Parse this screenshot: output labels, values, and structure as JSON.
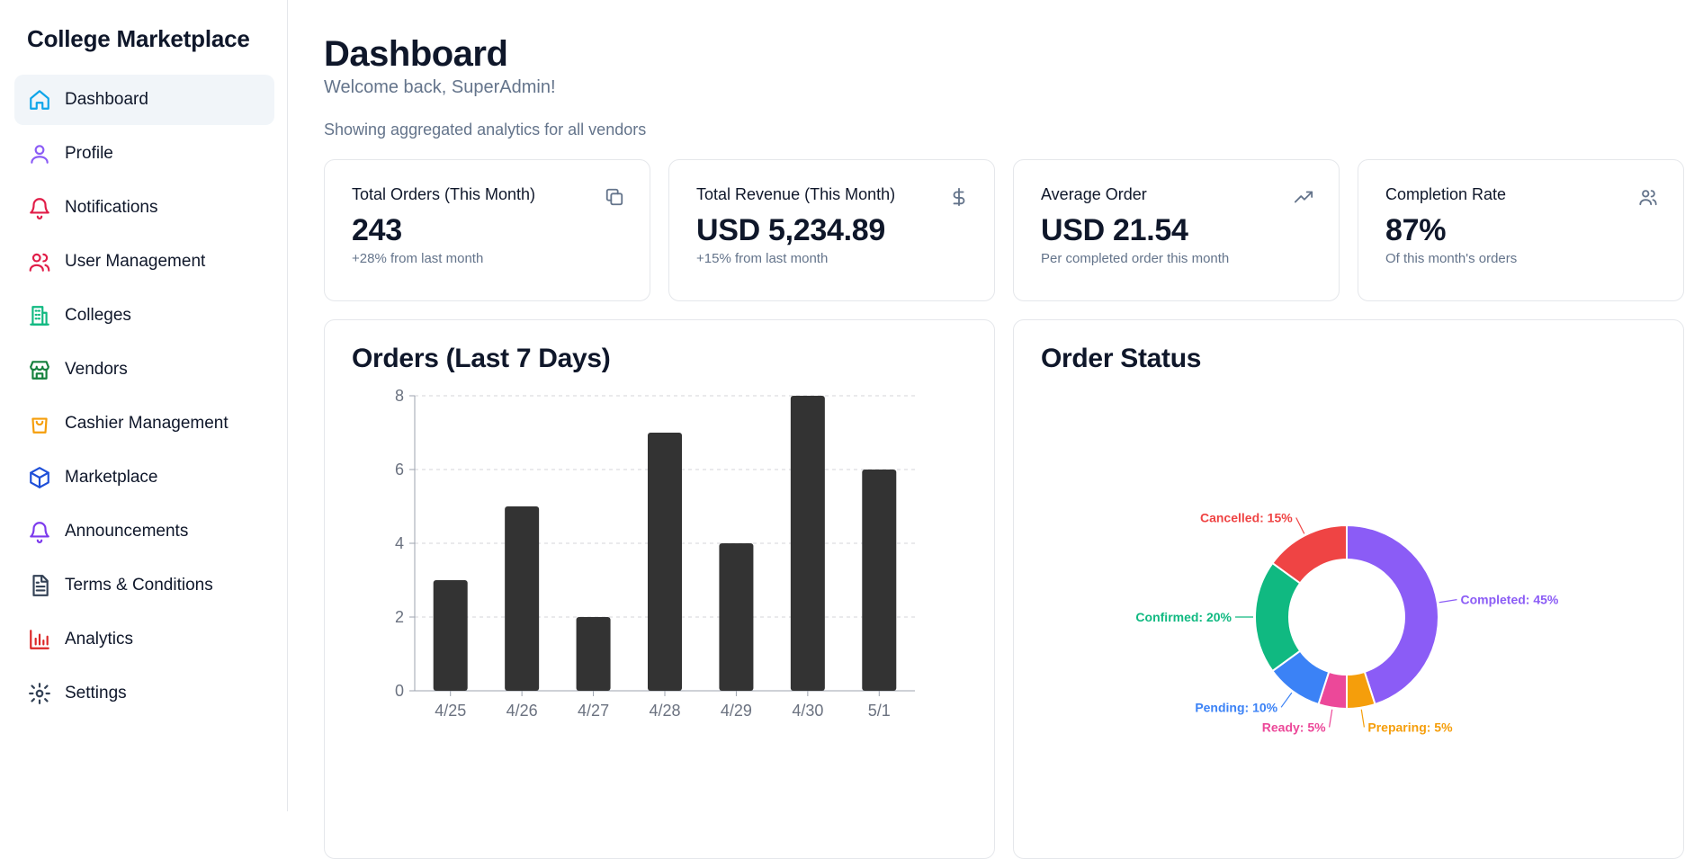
{
  "brand": "College Marketplace",
  "sidebar": {
    "items": [
      {
        "label": "Dashboard",
        "icon": "home-icon",
        "color": "#0ea5e9",
        "active": true
      },
      {
        "label": "Profile",
        "icon": "user-icon",
        "color": "#8b5cf6"
      },
      {
        "label": "Notifications",
        "icon": "bell-icon",
        "color": "#e11d48"
      },
      {
        "label": "User Management",
        "icon": "users-icon",
        "color": "#e11d48"
      },
      {
        "label": "Colleges",
        "icon": "building-icon",
        "color": "#10b981"
      },
      {
        "label": "Vendors",
        "icon": "store-icon",
        "color": "#15803d"
      },
      {
        "label": "Cashier Management",
        "icon": "shopping-bag-icon",
        "color": "#f59e0b"
      },
      {
        "label": "Marketplace",
        "icon": "package-icon",
        "color": "#1d4ed8"
      },
      {
        "label": "Announcements",
        "icon": "bell-icon",
        "color": "#7c3aed"
      },
      {
        "label": "Terms & Conditions",
        "icon": "file-text-icon",
        "color": "#334155"
      },
      {
        "label": "Analytics",
        "icon": "bar-chart-icon",
        "color": "#dc2626"
      },
      {
        "label": "Settings",
        "icon": "gear-icon",
        "color": "#334155"
      }
    ]
  },
  "header": {
    "title": "Dashboard",
    "welcome": "Welcome back, SuperAdmin!",
    "aggregate_note": "Showing aggregated analytics for all vendors"
  },
  "stats": [
    {
      "title": "Total Orders (This Month)",
      "value": "243",
      "sub": "+28% from last month",
      "icon": "copy-icon"
    },
    {
      "title": "Total Revenue (This Month)",
      "value": "USD 5,234.89",
      "sub": "+15% from last month",
      "icon": "dollar-icon"
    },
    {
      "title": "Average Order",
      "value": "USD 21.54",
      "sub": "Per completed order this month",
      "icon": "trending-up-icon"
    },
    {
      "title": "Completion Rate",
      "value": "87%",
      "sub": "Of this month's orders",
      "icon": "users-icon"
    }
  ],
  "chart_data": [
    {
      "type": "bar",
      "title": "Orders (Last 7 Days)",
      "categories": [
        "4/25",
        "4/26",
        "4/27",
        "4/28",
        "4/29",
        "4/30",
        "5/1"
      ],
      "values": [
        3,
        5,
        2,
        7,
        4,
        8,
        6
      ],
      "yticks": [
        0,
        2,
        4,
        6,
        8
      ],
      "ylim": [
        0,
        8
      ],
      "grid": true,
      "bar_color": "#333333"
    },
    {
      "type": "pie",
      "title": "Order Status",
      "donut": true,
      "slices": [
        {
          "label": "Completed: 45%",
          "value": 45,
          "color": "#8b5cf6"
        },
        {
          "label": "Preparing: 5%",
          "value": 5,
          "color": "#f59e0b"
        },
        {
          "label": "Ready: 5%",
          "value": 5,
          "color": "#ec4899"
        },
        {
          "label": "Pending: 10%",
          "value": 10,
          "color": "#3b82f6"
        },
        {
          "label": "Confirmed: 20%",
          "value": 20,
          "color": "#10b981"
        },
        {
          "label": "Cancelled: 15%",
          "value": 15,
          "color": "#ef4444"
        }
      ]
    }
  ]
}
